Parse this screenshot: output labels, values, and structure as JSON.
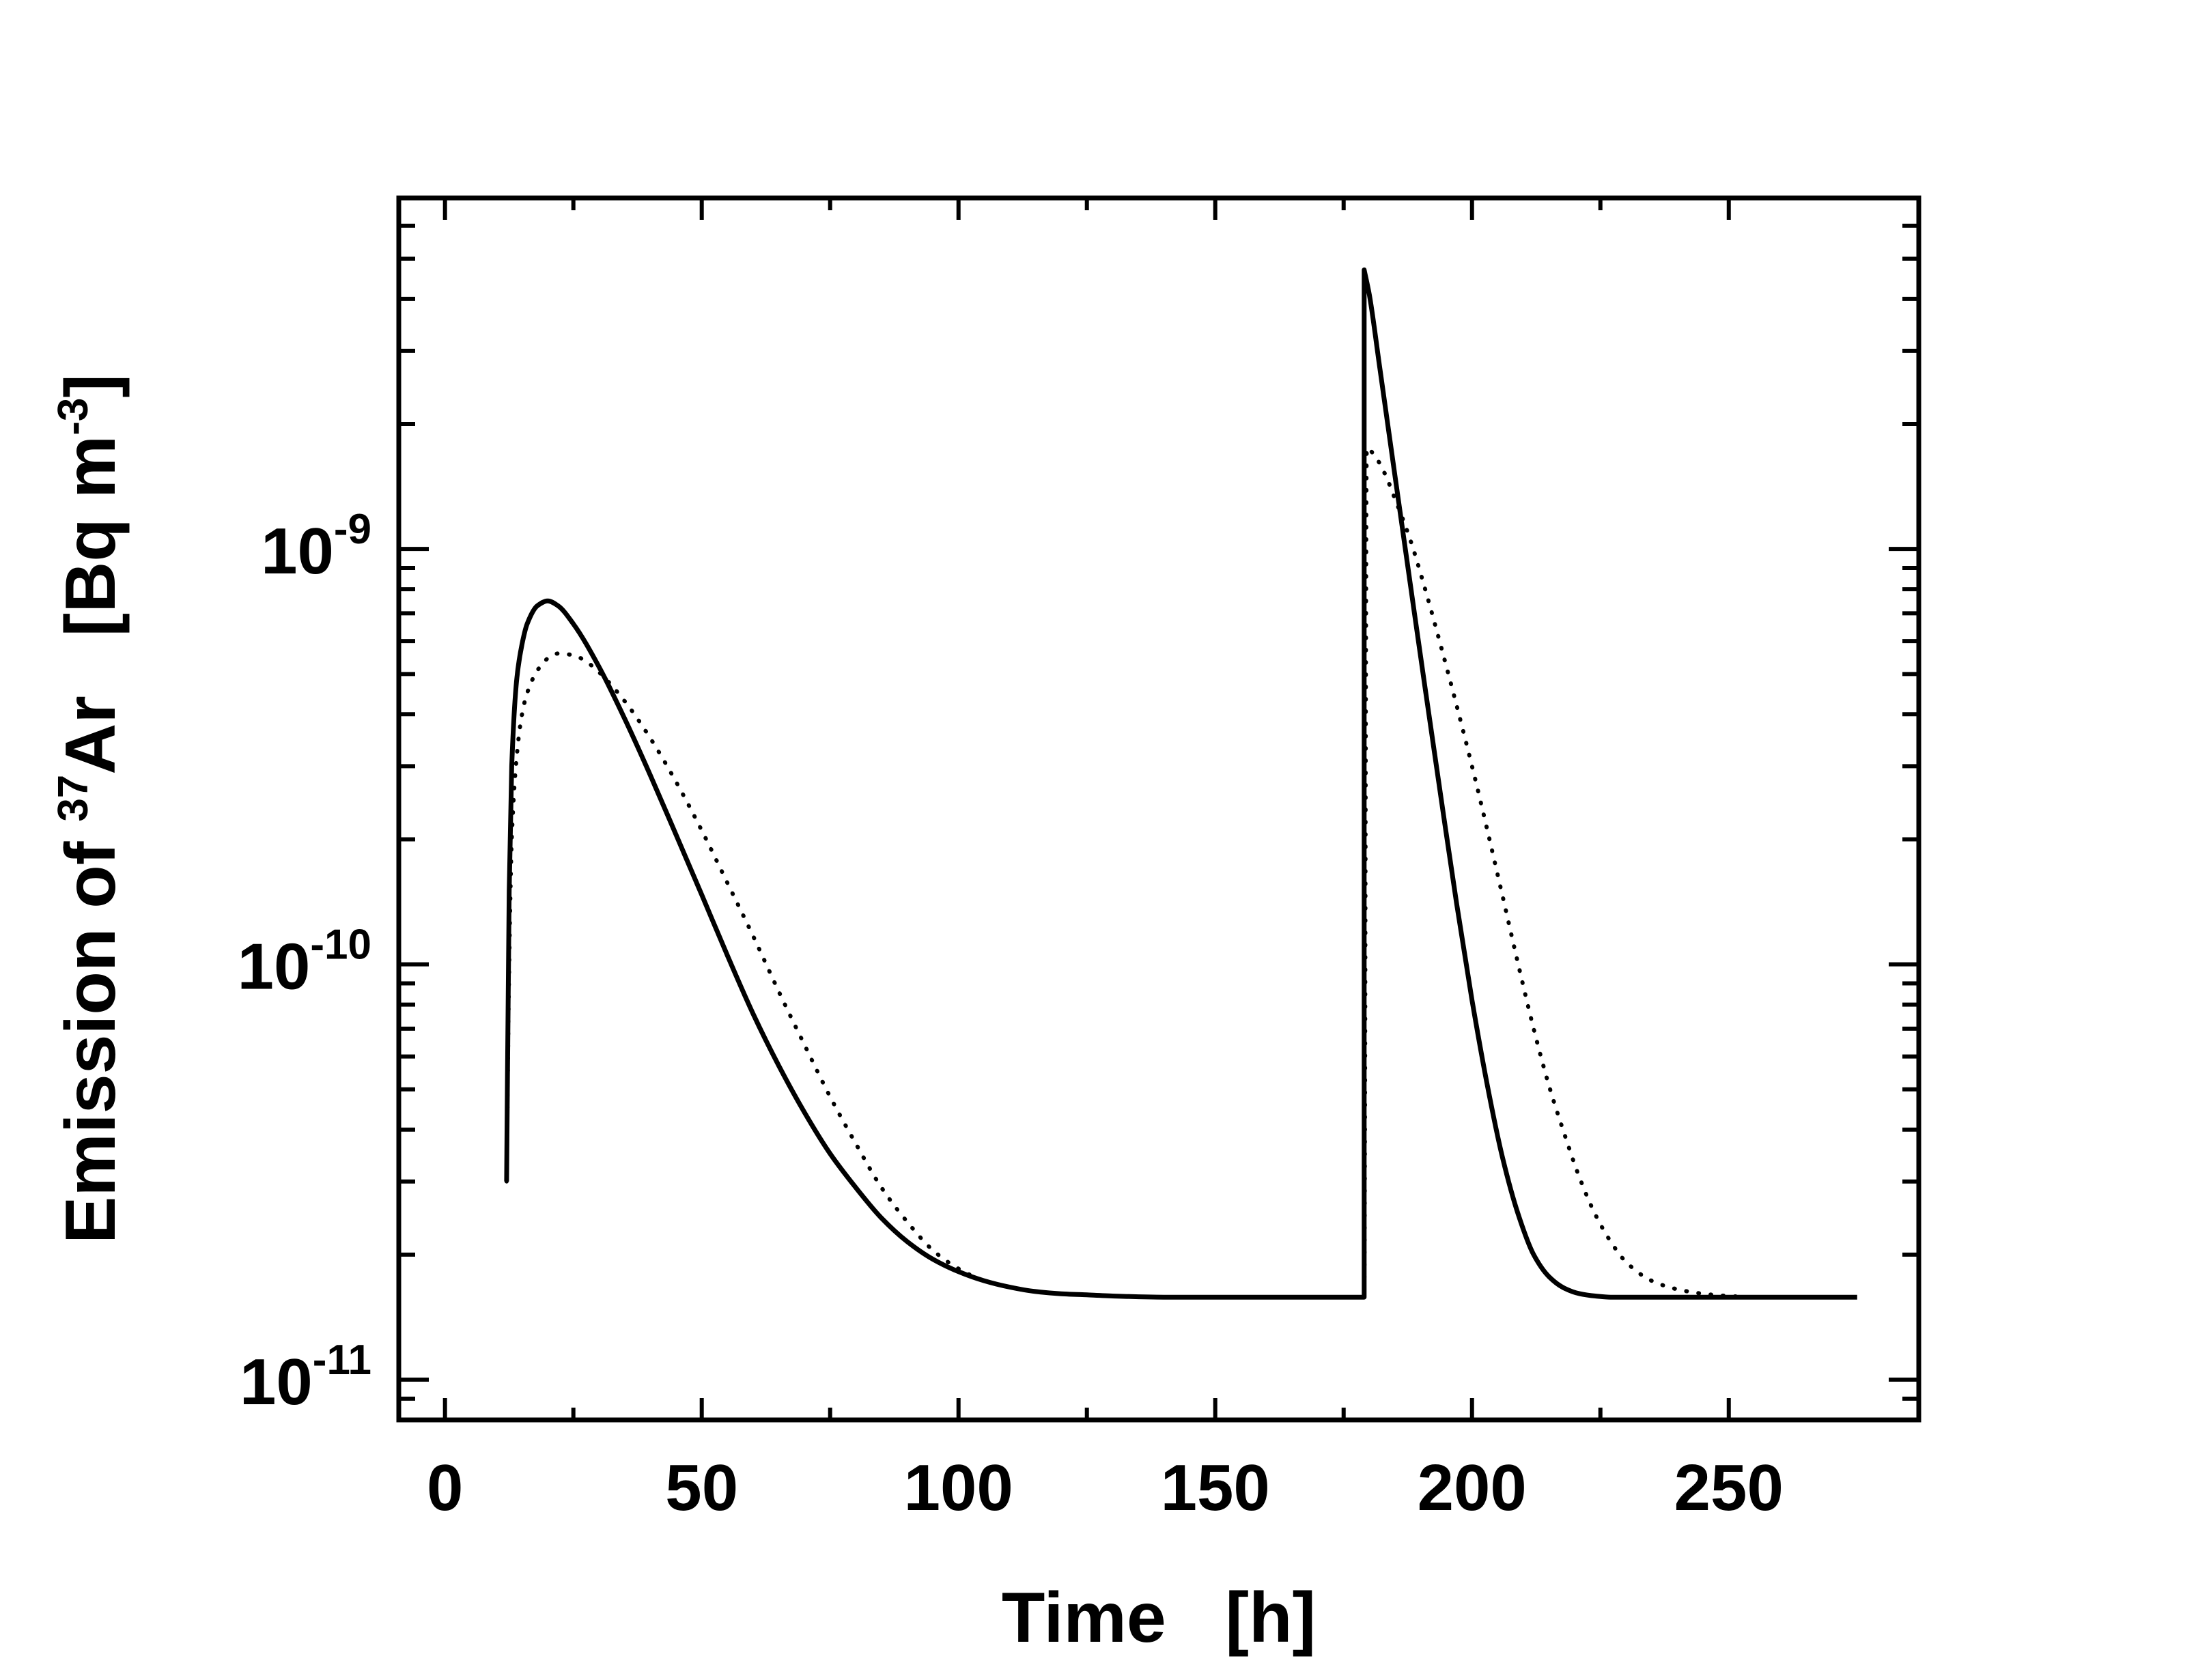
{
  "chart_data": {
    "type": "line",
    "title": "",
    "xlabel": "Time   [h]",
    "ylabel": {
      "prefix": "Emission of ",
      "isotope_mass": "37",
      "isotope_symbol": "Ar",
      "unit_open": "   [Bq m",
      "unit_exponent": "-3",
      "unit_close": "]"
    },
    "xscale": "linear",
    "yscale": "log",
    "xlim": [
      -9,
      287
    ],
    "ylim": [
      8e-12,
      7e-09
    ],
    "xticks": [
      {
        "value": 0,
        "label": "0"
      },
      {
        "value": 50,
        "label": "50"
      },
      {
        "value": 100,
        "label": "100"
      },
      {
        "value": 150,
        "label": "150"
      },
      {
        "value": 200,
        "label": "200"
      },
      {
        "value": 250,
        "label": "250"
      }
    ],
    "yticks": [
      {
        "value": 1e-11,
        "base": "10",
        "exponent": "-11"
      },
      {
        "value": 1e-10,
        "base": "10",
        "exponent": "-10"
      },
      {
        "value": 1e-09,
        "base": "10",
        "exponent": "-9"
      }
    ],
    "grid": false,
    "legend": "none",
    "series": [
      {
        "name": "solid",
        "style": "solid",
        "color": "#000000",
        "x": [
          12,
          12.5,
          13,
          14,
          15,
          16,
          18,
          20,
          22,
          25,
          30,
          35,
          40,
          45,
          50,
          55,
          60,
          65,
          70,
          75,
          80,
          85,
          90,
          95,
          100,
          105,
          110,
          115,
          120,
          125,
          130,
          140,
          150,
          160,
          170,
          179,
          179,
          180,
          182,
          185,
          188,
          191,
          194,
          197,
          200,
          203,
          206,
          209,
          212,
          215,
          218,
          221,
          224,
          227,
          230,
          235,
          240,
          250,
          260,
          275
        ],
        "y": [
          3e-11,
          1.5e-10,
          3e-10,
          4.9e-10,
          5.9e-10,
          6.6e-10,
          7.3e-10,
          7.5e-10,
          7.3e-10,
          6.6e-10,
          5.2e-10,
          3.9e-10,
          2.85e-10,
          2.05e-10,
          1.47e-10,
          1.05e-10,
          7.6e-11,
          5.7e-11,
          4.4e-11,
          3.5e-11,
          2.9e-11,
          2.45e-11,
          2.15e-11,
          1.95e-11,
          1.82e-11,
          1.73e-11,
          1.67e-11,
          1.63e-11,
          1.61e-11,
          1.6e-11,
          1.59e-11,
          1.58e-11,
          1.58e-11,
          1.58e-11,
          1.58e-11,
          1.58e-11,
          4.7e-09,
          4.1e-09,
          2.75e-09,
          1.5e-09,
          8.2e-10,
          4.5e-10,
          2.5e-10,
          1.4e-10,
          8.2e-11,
          5.1e-11,
          3.4e-11,
          2.5e-11,
          2e-11,
          1.77e-11,
          1.66e-11,
          1.61e-11,
          1.59e-11,
          1.58e-11,
          1.58e-11,
          1.58e-11,
          1.58e-11,
          1.58e-11,
          1.58e-11,
          1.58e-11
        ]
      },
      {
        "name": "dotted",
        "style": "dotted",
        "color": "#000000",
        "x": [
          12,
          12.5,
          13,
          14,
          15,
          16,
          18,
          20,
          22,
          25,
          28,
          30,
          35,
          40,
          45,
          50,
          55,
          60,
          65,
          70,
          75,
          80,
          85,
          90,
          95,
          100,
          105,
          110,
          115,
          120,
          125,
          130,
          140,
          150,
          160,
          170,
          179,
          179.5,
          181,
          183,
          185,
          188,
          191,
          194,
          197,
          200,
          203,
          206,
          209,
          212,
          215,
          218,
          221,
          224,
          227,
          230,
          235,
          240,
          245,
          250,
          255,
          260,
          265,
          275
        ],
        "y": [
          3e-11,
          1e-10,
          2e-10,
          3.2e-10,
          4e-10,
          4.5e-10,
          5.1e-10,
          5.45e-10,
          5.6e-10,
          5.55e-10,
          5.3e-10,
          5.05e-10,
          4.3e-10,
          3.5e-10,
          2.75e-10,
          2.1e-10,
          1.57e-10,
          1.17e-10,
          8.6e-11,
          6.4e-11,
          4.8e-11,
          3.7e-11,
          2.9e-11,
          2.4e-11,
          2.05e-11,
          1.85e-11,
          1.73e-11,
          1.67e-11,
          1.63e-11,
          1.61e-11,
          1.6e-11,
          1.59e-11,
          1.58e-11,
          1.58e-11,
          1.58e-11,
          1.58e-11,
          1.58e-11,
          1.75e-09,
          1.68e-09,
          1.52e-09,
          1.32e-09,
          1.05e-09,
          7.9e-10,
          5.8e-10,
          4.2e-10,
          3e-10,
          2.1e-10,
          1.45e-10,
          1e-10,
          7e-11,
          5.1e-11,
          3.9e-11,
          3.05e-11,
          2.5e-11,
          2.15e-11,
          1.92e-11,
          1.73e-11,
          1.65e-11,
          1.61e-11,
          1.59e-11,
          1.58e-11,
          1.58e-11,
          1.58e-11,
          1.58e-11
        ]
      }
    ]
  }
}
